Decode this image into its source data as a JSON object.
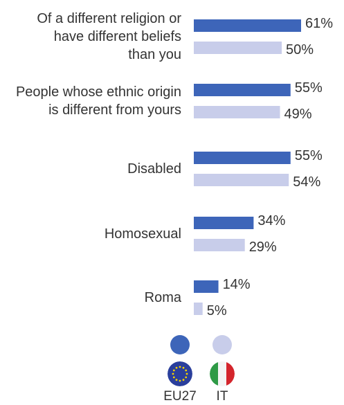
{
  "colors": {
    "eu27": "#3d65b9",
    "country": "#c8cdea",
    "text": "#333333"
  },
  "chart_data": {
    "type": "bar",
    "orientation": "horizontal",
    "categories": [
      [
        "Of a different religion or",
        "have different beliefs",
        "than you"
      ],
      [
        "People whose ethnic origin",
        "is different from yours"
      ],
      [
        "Disabled"
      ],
      [
        "Homosexual"
      ],
      [
        "Roma"
      ]
    ],
    "series": [
      {
        "name": "EU27",
        "values": [
          61,
          55,
          55,
          34,
          14
        ]
      },
      {
        "name": "IT",
        "values": [
          50,
          49,
          54,
          29,
          5
        ]
      }
    ],
    "value_suffix": "%",
    "xlim": [
      0,
      70
    ]
  },
  "legend": {
    "eu27_label": "EU27",
    "it_label": "IT",
    "eu27_icon": "eu-flag-icon",
    "it_icon": "italy-flag-icon"
  }
}
